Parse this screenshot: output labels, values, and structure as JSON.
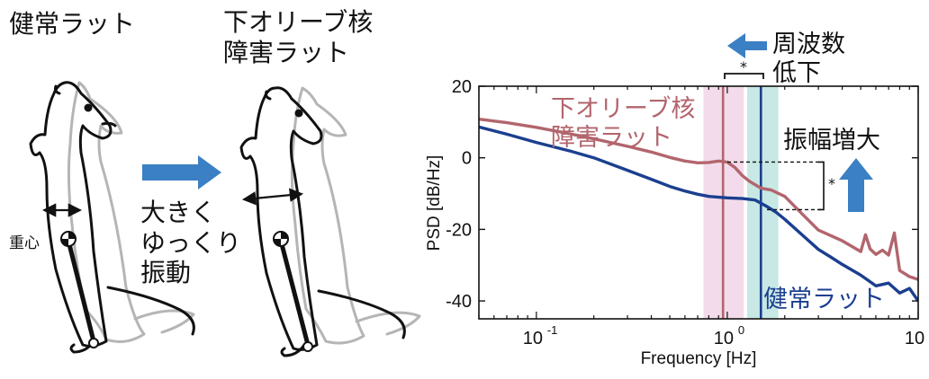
{
  "left_panel": {
    "healthy_title": "健常ラット",
    "lesion_title_line1": "下オリーブ核",
    "lesion_title_line2": "障害ラット",
    "cog_label": "重心",
    "arrow_text_line1": "大きく",
    "arrow_text_line2": "ゆっくり",
    "arrow_text_line3": "振動"
  },
  "colors": {
    "healthy_line": "#1b3f8f",
    "lesion_line": "#b2656d",
    "blue_arrow": "#3b7fc4",
    "pink_band": "#f3d9ea",
    "teal_band": "#c4e7e3"
  },
  "chart_data": {
    "type": "line",
    "x_scale": "log",
    "xlabel": "Frequency [Hz]",
    "ylabel": "PSD [dB/Hz]",
    "xlim": [
      0.05,
      10
    ],
    "ylim": [
      -45,
      20
    ],
    "x_ticks": [
      {
        "value": 0.1,
        "base": "10",
        "exp": "-1"
      },
      {
        "value": 1,
        "base": "10",
        "exp": "0"
      },
      {
        "value": 10,
        "base": "10",
        "exp": "1"
      }
    ],
    "y_ticks": [
      20,
      0,
      -20,
      -40
    ],
    "series": [
      {
        "name": "下オリーブ核障害ラット",
        "color": "#b2656d",
        "x": [
          0.05,
          0.07,
          0.1,
          0.15,
          0.2,
          0.3,
          0.4,
          0.5,
          0.6,
          0.7,
          0.8,
          0.9,
          1.0,
          1.1,
          1.2,
          1.3,
          1.5,
          1.7,
          2.0,
          2.5,
          3.0,
          4.0,
          5.0,
          5.3,
          5.6,
          6.0,
          6.5,
          7.0,
          7.5,
          8.0,
          9.0,
          10.0
        ],
        "y": [
          10.8,
          9.8,
          8.5,
          6.7,
          5.3,
          3.2,
          1.6,
          0.1,
          -0.9,
          -1.4,
          -1.3,
          -0.9,
          -1.2,
          -2.8,
          -5.0,
          -6.5,
          -8.5,
          -9.0,
          -10.8,
          -16.0,
          -20.2,
          -23.2,
          -26.2,
          -21.5,
          -25.5,
          -27.0,
          -25.8,
          -27.2,
          -21.0,
          -31.5,
          -33.2,
          -34.0
        ]
      },
      {
        "name": "健常ラット",
        "color": "#1b3f8f",
        "x": [
          0.05,
          0.07,
          0.1,
          0.15,
          0.2,
          0.3,
          0.4,
          0.5,
          0.6,
          0.7,
          0.8,
          1.0,
          1.2,
          1.4,
          1.6,
          1.8,
          2.0,
          2.5,
          3.0,
          3.5,
          4.0,
          5.0,
          6.0,
          7.0,
          8.0,
          9.0,
          10.0
        ],
        "y": [
          8.6,
          6.6,
          4.3,
          1.9,
          0.0,
          -3.5,
          -6.0,
          -8.0,
          -9.3,
          -10.2,
          -10.8,
          -11.2,
          -11.4,
          -11.8,
          -13.5,
          -15.2,
          -17.2,
          -21.8,
          -25.6,
          -27.8,
          -29.8,
          -32.8,
          -35.8,
          -35.0,
          -37.8,
          -36.5,
          -40.0
        ]
      }
    ],
    "vertical_lines": [
      {
        "series": "下オリーブ核障害ラット",
        "x": 0.95,
        "color": "#b2656d"
      },
      {
        "series": "健常ラット",
        "x": 1.5,
        "color": "#1b3f8f"
      }
    ],
    "bands": [
      {
        "x0": 0.75,
        "x1": 1.22,
        "color": "#f3d9ea"
      },
      {
        "x0": 1.27,
        "x1": 1.85,
        "color": "#c4e7e3"
      }
    ],
    "annotations": {
      "freq_arrow_line1": "周波数",
      "freq_arrow_line2": "低下",
      "amp_arrow_line1": "振幅増大",
      "sig_star_freq": "*",
      "sig_star_amp": "*",
      "lesion_label_line1": "下オリーブ核",
      "lesion_label_line2": "障害ラット",
      "healthy_label": "健常ラット",
      "amp_ref_lesion_db": -1.2,
      "amp_ref_healthy_db": -14.5
    }
  }
}
